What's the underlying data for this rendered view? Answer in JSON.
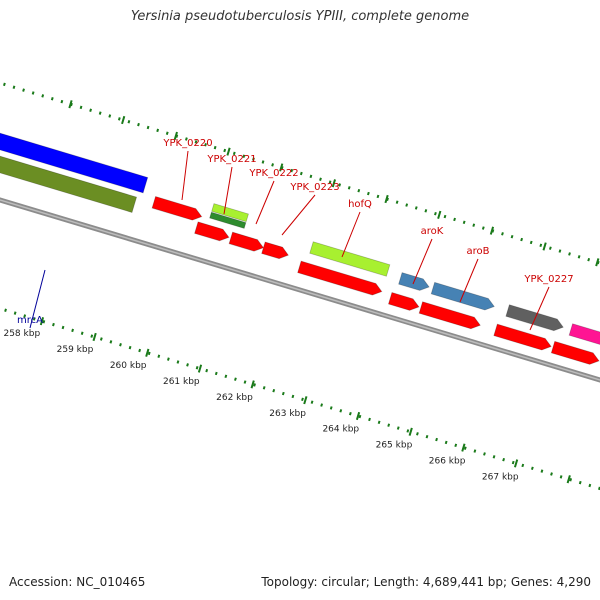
{
  "title": "Yersinia pseudotuberculosis YPIII, complete genome",
  "footer": {
    "accession": "Accession: NC_010465",
    "topology": "Topology: circular; Length: 4,689,441 bp; Genes: 4,290"
  },
  "colors": {
    "backbone": "#777777",
    "tick_dots": "#1a7a1a",
    "cds": "#ff0000",
    "rrna": "#0000ff",
    "trna": "#6b8e23",
    "misc_light_green": "#a8f030",
    "misc_dark_green": "#2e8b2e",
    "steel_blue": "#4682b4",
    "gray_gene": "#606060",
    "magenta_gene": "#ff1493",
    "label_red": "#cc0000",
    "label_blue": "#000099"
  },
  "scale_labels": [
    "258 kbp",
    "259 kbp",
    "260 kbp",
    "261 kbp",
    "262 kbp",
    "263 kbp",
    "264 kbp",
    "265 kbp",
    "266 kbp",
    "267 kbp"
  ],
  "gene_labels": [
    {
      "id": "mrca",
      "text": "mrcA",
      "color": "blue"
    },
    {
      "id": "ypk-0220",
      "text": "YPK_0220",
      "color": "red"
    },
    {
      "id": "ypk-0221",
      "text": "YPK_0221",
      "color": "red"
    },
    {
      "id": "ypk-0222",
      "text": "YPK_0222",
      "color": "red"
    },
    {
      "id": "ypk-0223",
      "text": "YPK_0223",
      "color": "red"
    },
    {
      "id": "hofq",
      "text": "hofQ",
      "color": "red"
    },
    {
      "id": "arok",
      "text": "aroK",
      "color": "red"
    },
    {
      "id": "arob",
      "text": "aroB",
      "color": "red"
    },
    {
      "id": "ypk-0227",
      "text": "YPK_0227",
      "color": "red"
    }
  ]
}
